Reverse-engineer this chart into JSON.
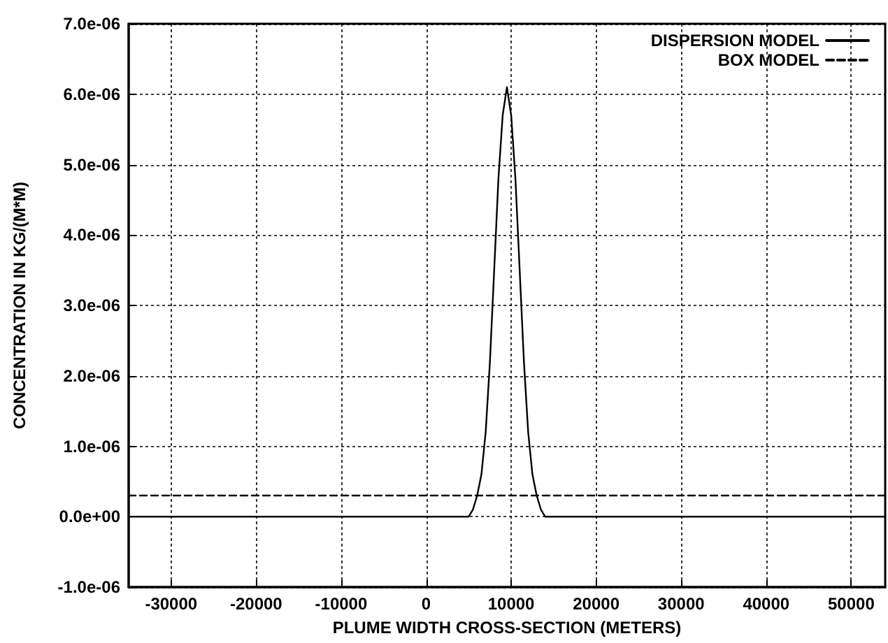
{
  "chart_data": {
    "type": "line",
    "xlabel": "PLUME WIDTH CROSS-SECTION (METERS)",
    "ylabel": "CONCENTRATION IN KG/(M*M)",
    "series": [
      {
        "name": "DISPERSION MODEL",
        "color": "#000000",
        "line_style": "solid",
        "x": [
          -35000,
          5000,
          5500,
          6000,
          6500,
          7000,
          7500,
          8000,
          8500,
          9000,
          9500,
          10000,
          10500,
          11000,
          11500,
          12000,
          12500,
          13000,
          13500,
          14000,
          54000
        ],
        "values": [
          0,
          0,
          1e-07,
          3e-07,
          6e-07,
          1.2e-06,
          2.2e-06,
          3.5e-06,
          4.8e-06,
          5.7e-06,
          6.1e-06,
          5.7e-06,
          4.8e-06,
          3.5e-06,
          2.2e-06,
          1.2e-06,
          6e-07,
          3e-07,
          1e-07,
          0,
          0
        ]
      },
      {
        "name": "BOX MODEL",
        "color": "#000000",
        "line_style": "dashed",
        "x": [
          -35000,
          54000
        ],
        "values": [
          3e-07,
          3e-07
        ]
      }
    ],
    "xlim": [
      -35000,
      54000
    ],
    "xticks": [
      -30000,
      -20000,
      -10000,
      0,
      10000,
      20000,
      30000,
      40000,
      50000
    ],
    "ylim": [
      -1e-06,
      7e-06
    ],
    "yticks": [
      {
        "value": -1e-06,
        "label": "-1.0e-06"
      },
      {
        "value": 0,
        "label": "0.0e+00"
      },
      {
        "value": 1e-06,
        "label": "1.0e-06"
      },
      {
        "value": 2e-06,
        "label": "2.0e-06"
      },
      {
        "value": 3e-06,
        "label": "3.0e-06"
      },
      {
        "value": 4e-06,
        "label": "4.0e-06"
      },
      {
        "value": 5e-06,
        "label": "5.0e-06"
      },
      {
        "value": 6e-06,
        "label": "6.0e-06"
      },
      {
        "value": 7e-06,
        "label": "7.0e-06"
      }
    ],
    "grid": true,
    "legend": "top right",
    "marker": "none"
  }
}
